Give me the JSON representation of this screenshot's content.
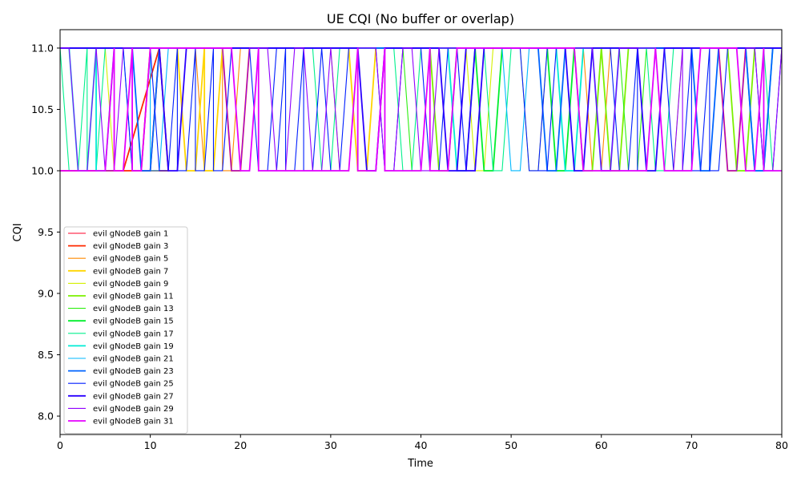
{
  "chart_data": {
    "type": "line",
    "title": "UE CQI (No buffer or overlap)",
    "xlabel": "Time",
    "ylabel": "CQI",
    "xlim": [
      0,
      80
    ],
    "ylim": [
      7.85,
      11.15
    ],
    "x_ticks": [
      0,
      10,
      20,
      30,
      40,
      50,
      60,
      70,
      80
    ],
    "y_ticks": [
      8.0,
      8.5,
      9.0,
      9.5,
      10.0,
      10.5,
      11.0
    ],
    "x_tick_labels": [
      "0",
      "10",
      "20",
      "30",
      "40",
      "50",
      "60",
      "70",
      "80"
    ],
    "y_tick_labels": [
      "8.0",
      "8.5",
      "9.0",
      "9.5",
      "10.0",
      "10.5",
      "11.0"
    ],
    "grid": false,
    "legend_position": "lower-left",
    "series": [
      {
        "name": "evil gNodeB gain 1",
        "color": "#ff0029",
        "width": 1,
        "dips": [
          [
            0,
            10
          ]
        ]
      },
      {
        "name": "evil gNodeB gain 3",
        "color": "#ff2a00",
        "width": 2,
        "dips": [
          [
            0,
            10
          ],
          [
            7,
            9
          ],
          [
            12,
            10
          ],
          [
            19,
            20
          ],
          [
            74,
            75
          ]
        ]
      },
      {
        "name": "evil gNodeB gain 5",
        "color": "#ff8a00",
        "width": 1,
        "dips": [
          [
            16,
            17
          ],
          [
            18,
            19
          ],
          [
            59,
            60
          ]
        ]
      },
      {
        "name": "evil gNodeB gain 7",
        "color": "#ffd500",
        "width": 2,
        "dips": [
          [
            14,
            15
          ],
          [
            16,
            17
          ],
          [
            33,
            34
          ]
        ]
      },
      {
        "name": "evil gNodeB gain 9",
        "color": "#d4f000",
        "width": 1,
        "dips": [
          [
            6,
            7
          ],
          [
            31,
            32
          ],
          [
            46,
            47
          ],
          [
            52,
            53
          ],
          [
            67,
            68
          ]
        ]
      },
      {
        "name": "evil gNodeB gain 11",
        "color": "#7cf000",
        "width": 2,
        "dips": [
          [
            42,
            43
          ],
          [
            58,
            59
          ],
          [
            61,
            62
          ],
          [
            75,
            76
          ]
        ]
      },
      {
        "name": "evil gNodeB gain 13",
        "color": "#2cef10",
        "width": 1,
        "dips": [
          [
            39,
            40
          ],
          [
            63,
            64
          ]
        ]
      },
      {
        "name": "evil gNodeB gain 15",
        "color": "#00ee2c",
        "width": 2,
        "dips": [
          [
            47,
            48
          ],
          [
            55,
            56
          ]
        ]
      },
      {
        "name": "evil gNodeB gain 17",
        "color": "#00f08c",
        "width": 1,
        "dips": [
          [
            1,
            2
          ],
          [
            3,
            4
          ],
          [
            29,
            30
          ],
          [
            38,
            39
          ],
          [
            48,
            49
          ],
          [
            66,
            67
          ],
          [
            76,
            77
          ],
          [
            79,
            80
          ]
        ]
      },
      {
        "name": "evil gNodeB gain 19",
        "color": "#00ecd4",
        "width": 2,
        "dips": [
          [
            2,
            3
          ],
          [
            4,
            5
          ],
          [
            44,
            45
          ],
          [
            56,
            57
          ],
          [
            77,
            78
          ]
        ]
      },
      {
        "name": "evil gNodeB gain 21",
        "color": "#00b8ff",
        "width": 1,
        "dips": [
          [
            8,
            9
          ],
          [
            10,
            11
          ],
          [
            50,
            51
          ],
          [
            57,
            58
          ]
        ]
      },
      {
        "name": "evil gNodeB gain 23",
        "color": "#0064ff",
        "width": 2,
        "dips": [
          [
            9,
            10
          ],
          [
            54,
            55
          ],
          [
            60,
            61
          ],
          [
            71,
            72
          ],
          [
            77,
            78
          ]
        ]
      },
      {
        "name": "evil gNodeB gain 25",
        "color": "#001eff",
        "width": 1,
        "dips": [
          [
            8,
            9
          ],
          [
            11,
            12
          ],
          [
            13,
            14
          ],
          [
            15,
            16
          ],
          [
            17,
            18
          ],
          [
            22,
            23
          ],
          [
            23,
            24
          ],
          [
            25,
            26
          ],
          [
            27,
            28
          ],
          [
            30,
            31
          ],
          [
            36,
            37
          ],
          [
            41,
            42
          ],
          [
            45,
            46
          ],
          [
            52,
            53
          ],
          [
            53,
            54
          ],
          [
            62,
            63
          ],
          [
            64,
            65
          ],
          [
            68,
            69
          ],
          [
            70,
            71
          ],
          [
            72,
            73
          ],
          [
            78,
            79
          ]
        ]
      },
      {
        "name": "evil gNodeB gain 27",
        "color": "#2a00ff",
        "width": 2,
        "dips": [
          [
            12,
            13
          ],
          [
            34,
            35
          ],
          [
            43,
            44
          ],
          [
            44,
            45
          ],
          [
            45,
            46
          ],
          [
            57,
            58
          ],
          [
            65,
            66
          ]
        ]
      },
      {
        "name": "evil gNodeB gain 29",
        "color": "#9000ff",
        "width": 1,
        "dips": [
          [
            2,
            3
          ],
          [
            5,
            6
          ],
          [
            19,
            20
          ],
          [
            24,
            25
          ],
          [
            28,
            29
          ],
          [
            31,
            32
          ],
          [
            36,
            37
          ],
          [
            40,
            41
          ],
          [
            60,
            61
          ],
          [
            67,
            68
          ],
          [
            69,
            70
          ],
          [
            74,
            75
          ],
          [
            78,
            79
          ]
        ]
      },
      {
        "name": "evil gNodeB gain 31",
        "color": "#e400ff",
        "width": 2,
        "dips": [
          [
            0,
            5
          ],
          [
            6,
            7
          ],
          [
            8,
            9
          ],
          [
            20,
            21
          ],
          [
            22,
            32
          ],
          [
            33,
            35
          ],
          [
            36,
            40
          ],
          [
            41,
            43
          ],
          [
            58,
            65
          ],
          [
            67,
            70
          ],
          [
            76,
            77
          ],
          [
            78,
            80
          ]
        ]
      }
    ]
  }
}
